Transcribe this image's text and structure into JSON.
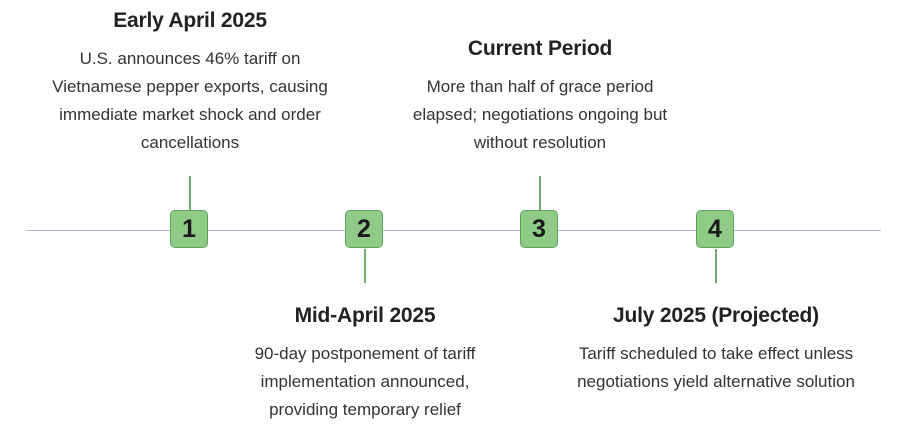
{
  "events": [
    {
      "number": "1",
      "title": "Early April 2025",
      "description": "U.S. announces 46% tariff on Vietnamese pepper exports, causing immediate market shock and order cancellations"
    },
    {
      "number": "2",
      "title": "Mid-April 2025",
      "description": "90-day postponement of tariff implementation announced, providing temporary relief"
    },
    {
      "number": "3",
      "title": "Current Period",
      "description": "More than half of grace period elapsed; negotiations ongoing but without resolution"
    },
    {
      "number": "4",
      "title": "July 2025 (Projected)",
      "description": "Tariff scheduled to take effect unless negotiations yield alternative solution"
    }
  ],
  "colors": {
    "marker_fill": "#8fcb87",
    "marker_border": "#5ea35a",
    "stem": "#6db06a",
    "axis": "#b8b4cc"
  }
}
